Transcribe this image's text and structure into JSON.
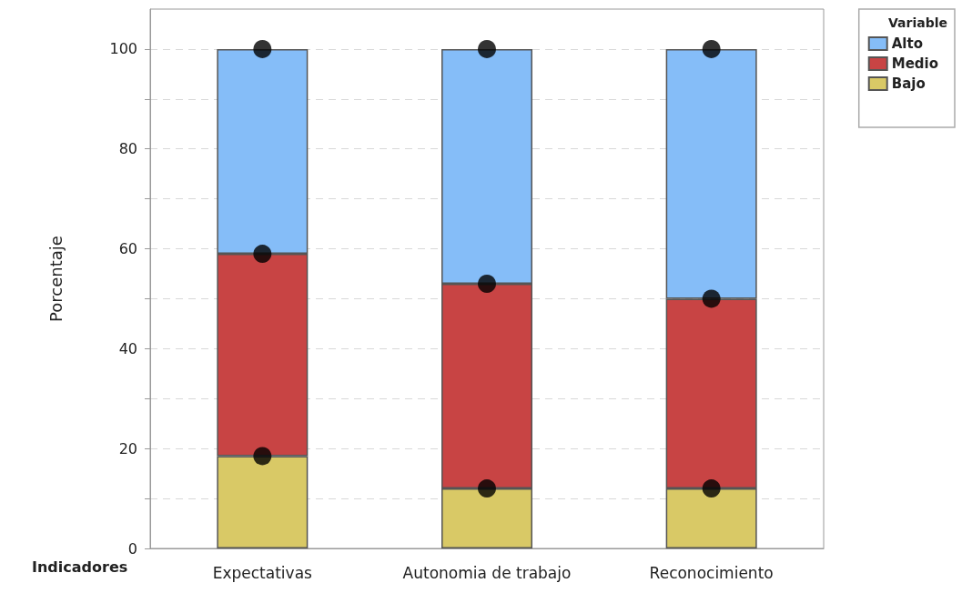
{
  "chart_data": {
    "type": "bar",
    "stacked": true,
    "xlabel": "Indicadores",
    "ylabel": "Porcentaje",
    "legend_title": "Variable",
    "legend": "top right",
    "categories": [
      "Expectativas",
      "Autonomia de trabajo",
      "Reconocimiento"
    ],
    "series": [
      {
        "name": "Bajo",
        "color": "#d9c966",
        "values": [
          18.5,
          12,
          12
        ]
      },
      {
        "name": "Medio",
        "color": "#c84444",
        "values": [
          40.5,
          41,
          38
        ]
      },
      {
        "name": "Alto",
        "color": "#85bdf8",
        "values": [
          41,
          47,
          50
        ]
      },
      {
        "type": "scatter",
        "color": "#000000",
        "marker": "circle",
        "x": [
          "Expectativas",
          "Expectativas",
          "Expectativas",
          "Autonomia de trabajo",
          "Autonomia de trabajo",
          "Autonomia de trabajo",
          "Reconocimiento",
          "Reconocimiento",
          "Reconocimiento"
        ],
        "values": [
          18.5,
          59,
          100,
          12,
          53,
          100,
          12,
          50,
          100
        ]
      }
    ],
    "ylim": [
      0,
      108
    ],
    "yticks": [
      0,
      {
        "value": 10,
        "label": null
      },
      20,
      {
        "value": 30,
        "label": null
      },
      40,
      {
        "value": 50,
        "label": null
      },
      60,
      {
        "value": 70,
        "label": null
      },
      80,
      {
        "value": 90,
        "label": null
      },
      100
    ],
    "grid": "y"
  }
}
